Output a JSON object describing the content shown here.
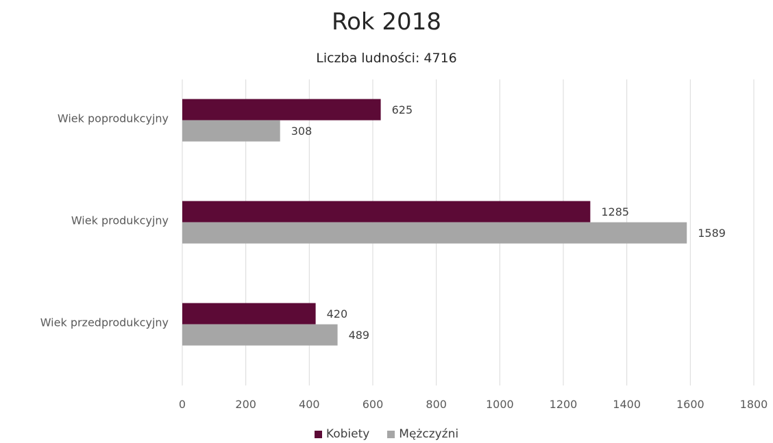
{
  "chart_data": {
    "type": "bar",
    "orientation": "horizontal",
    "title": "Rok 2018",
    "subtitle": "Liczba ludności: 4716",
    "xlabel": "",
    "ylabel": "",
    "categories": [
      "Wiek poprodukcyjny",
      "Wiek produkcyjny",
      "Wiek przedprodukcyjny"
    ],
    "series": [
      {
        "name": "Kobiety",
        "color": "#5c0a36",
        "values": [
          625,
          1285,
          420
        ]
      },
      {
        "name": "Mężczyźni",
        "color": "#a6a6a6",
        "values": [
          308,
          1589,
          489
        ]
      }
    ],
    "xlim": [
      0,
      1800
    ],
    "xticks": [
      0,
      200,
      400,
      600,
      800,
      1000,
      1200,
      1400,
      1600,
      1800
    ],
    "grid": "vertical",
    "legend_position": "bottom",
    "data_labels": true
  }
}
